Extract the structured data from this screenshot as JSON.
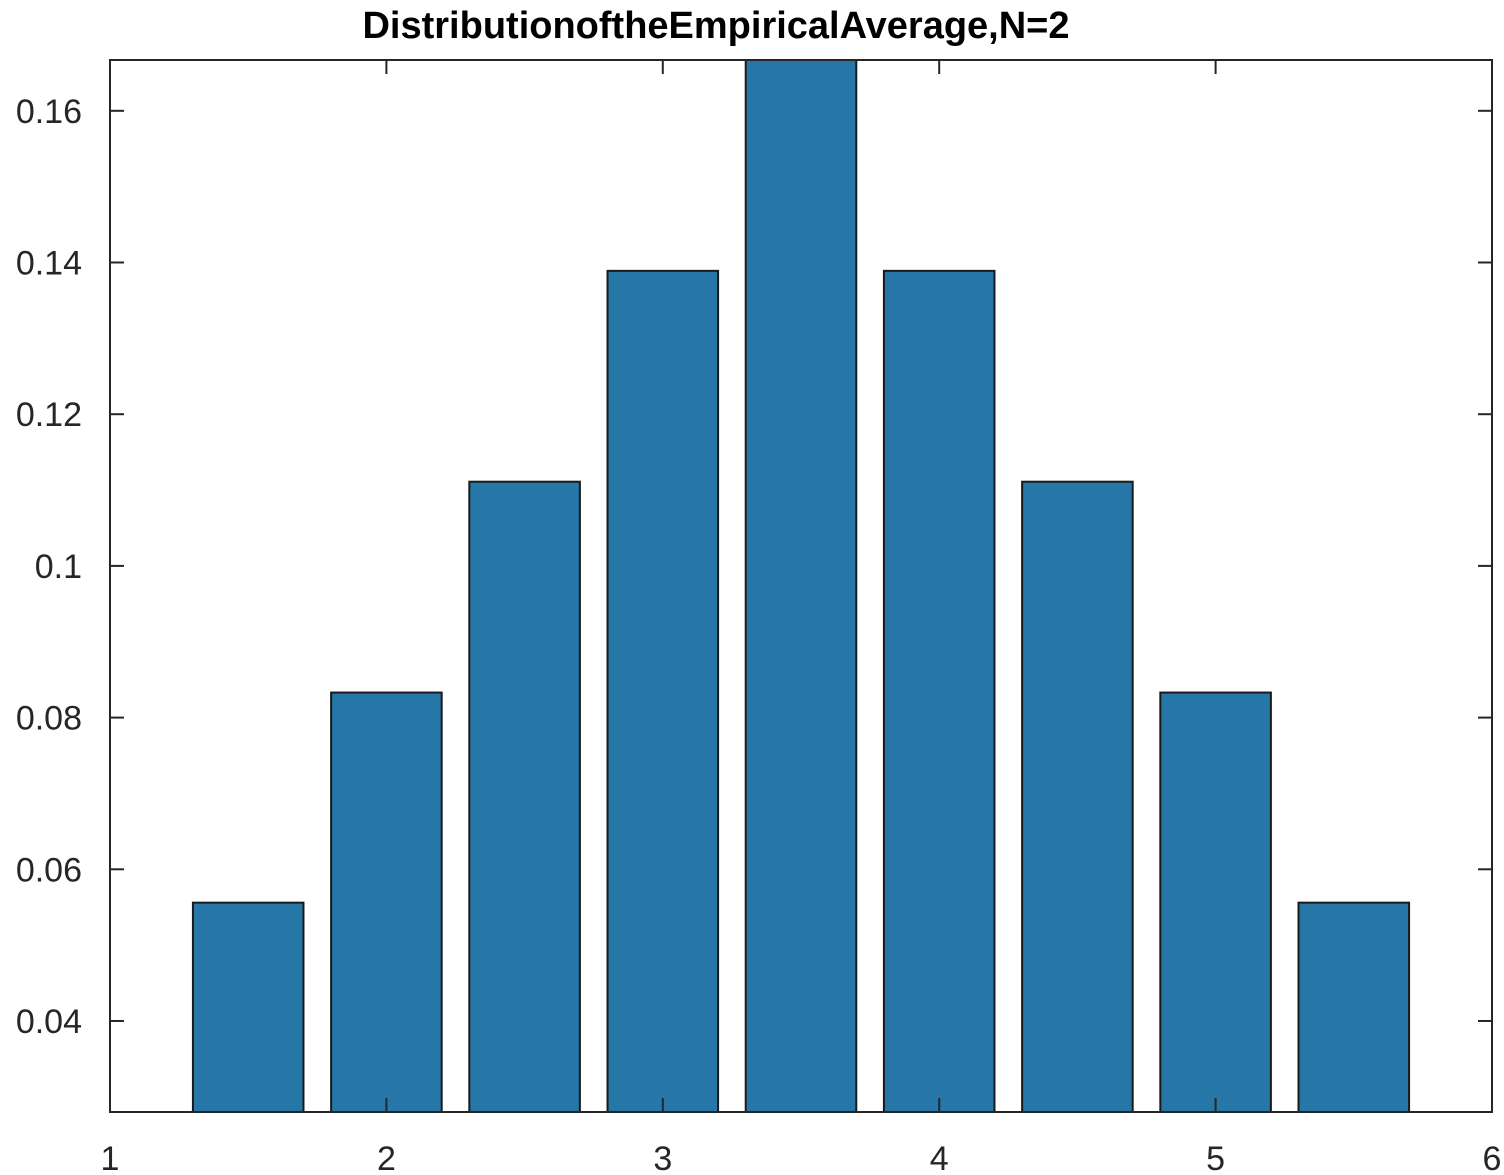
{
  "chart_data": {
    "type": "bar",
    "title": "DistributionoftheEmpiricalAverage,N=2",
    "xlabel": "",
    "ylabel": "",
    "x": [
      1.5,
      2,
      2.5,
      3,
      3.5,
      4,
      4.5,
      5,
      5.5
    ],
    "values": [
      0.0556,
      0.0833,
      0.1111,
      0.1389,
      0.1667,
      0.1389,
      0.1111,
      0.0833,
      0.0556
    ],
    "bar_width": 0.4,
    "xlim": [
      1,
      6
    ],
    "ylim": [
      0.028,
      0.1667
    ],
    "xticks": [
      1,
      2,
      3,
      4,
      5,
      6
    ],
    "xtick_labels": [
      "1",
      "2",
      "3",
      "4",
      "5",
      "6"
    ],
    "yticks": [
      0.04,
      0.06,
      0.08,
      0.1,
      0.12,
      0.14,
      0.16
    ],
    "ytick_labels": [
      "0.04",
      "0.06",
      "0.08",
      "0.1",
      "0.12",
      "0.14",
      "0.16"
    ],
    "grid": false,
    "legend": "none",
    "colors": {
      "bar_fill": "#2676a8",
      "bar_edge": "#1a1a1a",
      "axis": "#262626"
    }
  }
}
